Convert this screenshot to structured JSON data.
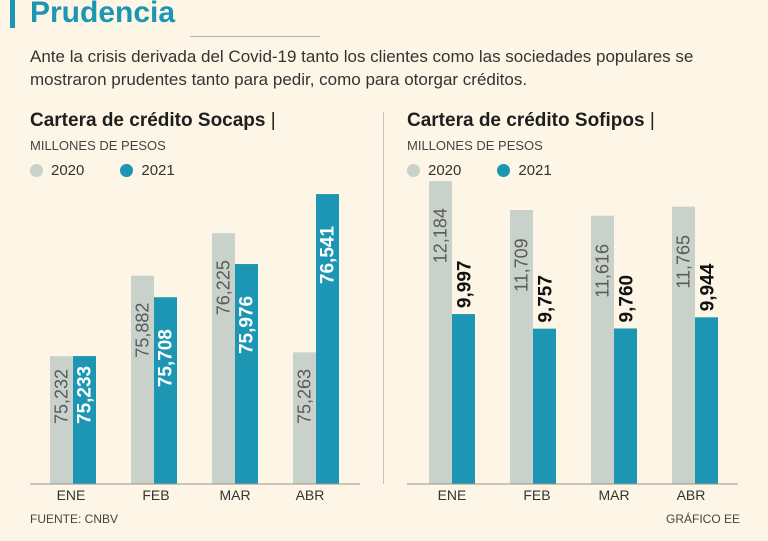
{
  "title": "Prudencia",
  "subtitle": "Ante la crisis derivada del Covid-19 tanto los clientes como las sociedades populares se mostraron prudentes tanto para pedir, como para otorgar créditos.",
  "source": "FUENTE: CNBV",
  "credit": "GRÁFICO EE",
  "colors": {
    "c2020": "#c9d1cb",
    "c2021": "#1c96b2",
    "accent": "#1c96b2",
    "background": "#fdf6e6"
  },
  "chart_data": [
    {
      "type": "bar",
      "title": "Cartera de crédito Socaps",
      "unit": "MILLONES DE PESOS",
      "categories": [
        "ENE",
        "FEB",
        "MAR",
        "ABR"
      ],
      "series": [
        {
          "name": "2020",
          "values": [
            75232,
            75882,
            76225,
            75263
          ],
          "labels": [
            "75,232",
            "75,882",
            "76,225",
            "75,263"
          ]
        },
        {
          "name": "2021",
          "values": [
            75233,
            75708,
            75976,
            76541
          ],
          "labels": [
            "75,233",
            "75,708",
            "75,976",
            "76,541"
          ]
        }
      ],
      "ylim": [
        74200,
        76800
      ]
    },
    {
      "type": "bar",
      "title": "Cartera de crédito Sofipos",
      "unit": "MILLONES DE PESOS",
      "categories": [
        "ENE",
        "FEB",
        "MAR",
        "ABR"
      ],
      "series": [
        {
          "name": "2020",
          "values": [
            12184,
            11709,
            11616,
            11765
          ],
          "labels": [
            "12,184",
            "11,709",
            "11,616",
            "11,765"
          ]
        },
        {
          "name": "2021",
          "values": [
            9997,
            9757,
            9760,
            9944
          ],
          "labels": [
            "9,997",
            "9,757",
            "9,760",
            "9,944"
          ]
        }
      ],
      "ylim": [
        7200,
        12500
      ]
    }
  ]
}
